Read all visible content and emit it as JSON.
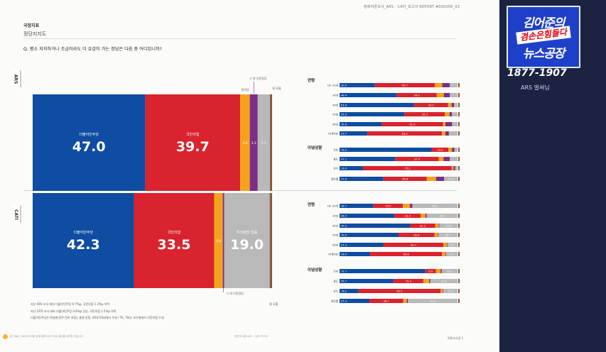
{
  "doc": {
    "header_right": "정례여론조사_ARS · CATI_보고서    REPORT #000000_03",
    "section": "국정지표",
    "subtitle": "정당지지도",
    "question": "Q.   평소 지지하거나 조금이라도 더 호감이 가는 정당은 다음 중 어디입니까?",
    "footer_left": "본 자료는 2024년 9월 정례여론조사의 주요 결과를 요약한 것입니다",
    "footer_center": "여론조사꽃 ARS · CATI 보고서",
    "footer_right": "여론조사꽃   1",
    "notes": [
      "지난 ARS 조사 대비 더불어민주당 0.7%p, 국민의힘 1.2%p  하락",
      "지난 CATI 조사 대비 더불어민주당  0.9%p 상승, 국민의힘 1.5%p 하락",
      "더불어민주당은 여성층(광주·전라 포함), 충청·강원, 40대 50대에서 우세 / TK, 70대, 보수층에서 국민의힘 우세"
    ]
  },
  "tv": {
    "line1": "김어준의",
    "line_mid": "겸손은힘들다",
    "line2": "뉴스공장",
    "phone": "1877-1907",
    "tag": "ARS 벌써님"
  },
  "colors": {
    "democratic": "#0e4da1",
    "ppp": "#d9232e",
    "yellow": "#f5a21b",
    "purple": "#7b2e87",
    "gray": "#b9b9b9",
    "brown": "#8a5a3c"
  },
  "chart_data": [
    {
      "type": "bar",
      "panel": "ARS",
      "stacked": true,
      "series": [
        {
          "name": "더불어민주당",
          "value": 47.0,
          "color": "#0e4da1"
        },
        {
          "name": "국민의힘",
          "value": 39.7,
          "color": "#d9232e"
        },
        {
          "name": "정의당",
          "value": 4.0,
          "color": "#f5a21b"
        },
        {
          "name": "그 외 다른정당",
          "value": 3.3,
          "color": "#7b2e87"
        },
        {
          "name": "지지정당 없음",
          "value": 5.1,
          "color": "#b9b9b9"
        },
        {
          "name": "잘 모름",
          "value": 0.9,
          "color": "#8a5a3c"
        }
      ],
      "value_labels": [
        "47.0",
        "39.7",
        "4.0",
        "3.3",
        "5.1"
      ],
      "side_label": "ARS"
    },
    {
      "type": "bar",
      "panel": "CATI",
      "stacked": true,
      "series": [
        {
          "name": "더불어민주당",
          "value": 42.3,
          "color": "#0e4da1"
        },
        {
          "name": "국민의힘",
          "value": 33.5,
          "color": "#d9232e"
        },
        {
          "name": "정의당",
          "value": 3.6,
          "color": "#f5a21b"
        },
        {
          "name": "그 외 다른정당",
          "value": 0.6,
          "color": "#7b2e87"
        },
        {
          "name": "지지정당 없음",
          "value": 19.0,
          "color": "#b9b9b9"
        },
        {
          "name": "잘 모름",
          "value": 1.0,
          "color": "#8a5a3c"
        }
      ],
      "value_labels": [
        "42.3",
        "33.5",
        "3.6",
        "",
        "19.0"
      ],
      "side_label": "CATI"
    },
    {
      "type": "bar",
      "panel": "ARS breakdown",
      "stacked": true,
      "groups": [
        {
          "name": "연령",
          "rows": [
            {
              "label": "18~29세",
              "values": [
                30.0,
                50.7,
                6.4,
                6.3,
                6.6
              ]
            },
            {
              "label": "30대",
              "values": [
                48.4,
                34.0,
                6.0,
                5.0,
                6.6
              ]
            },
            {
              "label": "40대",
              "values": [
                63.0,
                29.0,
                3.0,
                2.0,
                3.0
              ]
            },
            {
              "label": "50대",
              "values": [
                55.0,
                34.3,
                4.0,
                2.0,
                4.7
              ]
            },
            {
              "label": "60대",
              "values": [
                35.8,
                51.9,
                2.0,
                5.7,
                4.6
              ]
            },
            {
              "label": "70세이상",
              "values": [
                23.7,
                63.0,
                3.0,
                3.0,
                7.3
              ]
            }
          ]
        },
        {
          "name": "이념성향",
          "rows": [
            {
              "label": "진보",
              "values": [
                78.0,
                14.3,
                3.0,
                2.0,
                2.7
              ]
            },
            {
              "label": "중도",
              "values": [
                47.1,
                37.0,
                4.0,
                5.4,
                6.5
              ]
            },
            {
              "label": "보수",
              "values": [
                19.9,
                75.2,
                1.5,
                1.5,
                1.9
              ]
            },
            {
              "label": "잘모름",
              "values": [
                37.0,
                36.8,
                8.0,
                6.9,
                11.3
              ]
            }
          ]
        }
      ]
    },
    {
      "type": "bar",
      "panel": "CATI breakdown",
      "stacked": true,
      "groups": [
        {
          "name": "연령",
          "rows": [
            {
              "label": "18~29세",
              "values": [
                28.7,
                25.0,
                6.0,
                2.0,
                38.3
              ]
            },
            {
              "label": "30대",
              "values": [
                46.5,
                22.3,
                4.0,
                1.0,
                26.2
              ]
            },
            {
              "label": "40대",
              "values": [
                59.9,
                21.2,
                3.0,
                0.5,
                15.4
              ]
            },
            {
              "label": "50대",
              "values": [
                50.0,
                30.4,
                3.0,
                0.5,
                16.1
              ]
            },
            {
              "label": "60대",
              "values": [
                37.3,
                50.7,
                3.0,
                0.5,
                8.5
              ]
            },
            {
              "label": "70세이상",
              "values": [
                26.0,
                60.8,
                3.0,
                0.5,
                9.7
              ]
            }
          ]
        },
        {
          "name": "이념성향",
          "rows": [
            {
              "label": "진보",
              "values": [
                72.7,
                9.0,
                4.0,
                1.0,
                13.3
              ]
            },
            {
              "label": "중도",
              "values": [
                45.7,
                25.3,
                5.0,
                1.0,
                23.0
              ]
            },
            {
              "label": "보수",
              "values": [
                16.1,
                69.5,
                2.0,
                0.5,
                11.9
              ]
            },
            {
              "label": "잘모름",
              "values": [
                25.3,
                28.7,
                3.0,
                1.0,
                42.0
              ]
            }
          ]
        }
      ],
      "value_labels": {
        "18~29세": [
          "28.7",
          "25.0",
          "",
          "",
          "38.3"
        ],
        "30대": [
          "46.5",
          "22.3",
          "",
          "",
          "26.2"
        ],
        "40대": [
          "59.9",
          "21.2",
          "",
          "",
          "15.4"
        ],
        "50대": [
          "50.0",
          "30.4",
          "",
          "",
          "16.1"
        ],
        "60대": [
          "37.3",
          "50.7",
          "",
          "",
          "8.5"
        ],
        "70세이상": [
          "26.0",
          "60.8",
          "",
          "",
          "9.7"
        ],
        "진보": [
          "72.7",
          "9.0",
          "",
          "",
          "13.3"
        ],
        "중도": [
          "45.7",
          "25.3",
          "",
          "",
          "23.0"
        ],
        "보수": [
          "16.1",
          "69.5",
          "",
          "",
          "11.9"
        ],
        "잘모름": [
          "25.3",
          "28.7",
          "",
          "",
          "42.0"
        ]
      }
    }
  ]
}
